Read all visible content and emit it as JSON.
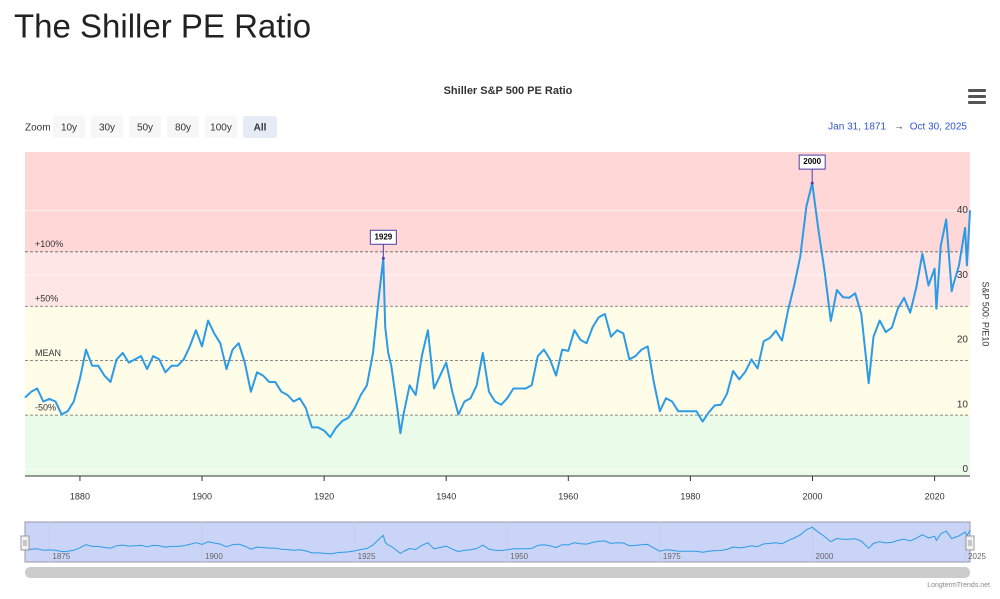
{
  "header": {
    "title": "The Shiller PE Ratio"
  },
  "chart_data": {
    "type": "line",
    "title": "Shiller S&P 500 PE Ratio",
    "y_axis_label": "S&P 500: P/E10",
    "credit": "LongtermTrends.net",
    "zoom": {
      "label": "Zoom",
      "buttons": [
        "10y",
        "30y",
        "50y",
        "80y",
        "100y",
        "All"
      ],
      "active": 5
    },
    "range": {
      "from": "Jan 31, 1871",
      "separator": "→",
      "to": "Oct 30, 2025"
    },
    "xlim": [
      1871,
      2025.8
    ],
    "ylim": [
      -1,
      49
    ],
    "xticks": [
      1880,
      1900,
      1920,
      1940,
      1960,
      1980,
      2000,
      2020
    ],
    "yticks": [
      0,
      10,
      20,
      30,
      40
    ],
    "grid": true,
    "bands": [
      {
        "label": "+100%",
        "value": 33.6,
        "color": "#ffd7d7"
      },
      {
        "label": "+50%",
        "value": 25.2,
        "color": "#ffe6e6"
      },
      {
        "label": "MEAN",
        "value": 16.8,
        "color": "#fffde8"
      },
      {
        "label": "-50%",
        "value": 8.4,
        "color": "#fffde8"
      }
    ],
    "below_color": "#eafbe9",
    "annotations": [
      {
        "x": 1929.7,
        "y": 32.6,
        "label": "1929"
      },
      {
        "x": 1999.95,
        "y": 44.2,
        "label": "2000"
      }
    ],
    "navigator": {
      "xticks": [
        1875,
        1900,
        1925,
        1950,
        1975,
        2000,
        2025
      ]
    },
    "series": [
      {
        "name": "Shiller PE",
        "color": "#2c9be6",
        "x": [
          1871,
          1872,
          1873,
          1874,
          1875,
          1876,
          1877,
          1878,
          1879,
          1880,
          1881,
          1882,
          1883,
          1884,
          1885,
          1886,
          1887,
          1888,
          1889,
          1890,
          1891,
          1892,
          1893,
          1894,
          1895,
          1896,
          1897,
          1898,
          1899,
          1900,
          1901,
          1902,
          1903,
          1904,
          1905,
          1906,
          1907,
          1908,
          1909,
          1910,
          1911,
          1912,
          1913,
          1914,
          1915,
          1916,
          1917,
          1918,
          1919,
          1920,
          1921,
          1922,
          1923,
          1924,
          1925,
          1926,
          1927,
          1928,
          1929,
          1929.7,
          1930,
          1930.5,
          1931,
          1932,
          1932.5,
          1933,
          1934,
          1935,
          1936,
          1937,
          1938,
          1939,
          1940,
          1941,
          1942,
          1943,
          1944,
          1945,
          1946,
          1947,
          1948,
          1949,
          1950,
          1951,
          1952,
          1953,
          1954,
          1955,
          1956,
          1957,
          1958,
          1959,
          1960,
          1961,
          1962,
          1963,
          1964,
          1965,
          1966,
          1967,
          1968,
          1969,
          1970,
          1971,
          1972,
          1973,
          1974,
          1975,
          1976,
          1977,
          1978,
          1979,
          1980,
          1981,
          1982,
          1983,
          1984,
          1985,
          1986,
          1987,
          1988,
          1989,
          1990,
          1991,
          1992,
          1993,
          1994,
          1995,
          1996,
          1997,
          1998,
          1999,
          1999.95,
          2001,
          2002,
          2003,
          2004,
          2005,
          2006,
          2007,
          2008,
          2009,
          2009.2,
          2010,
          2011,
          2012,
          2013,
          2014,
          2015,
          2016,
          2017,
          2018,
          2019,
          2020,
          2020.3,
          2021,
          2021.9,
          2022.8,
          2023,
          2024,
          2025,
          2025.3,
          2025.8
        ],
        "values": [
          11.1,
          12.0,
          12.5,
          10.5,
          10.9,
          10.5,
          8.5,
          9.0,
          10.5,
          14.0,
          18.5,
          16.0,
          16.0,
          14.5,
          13.5,
          17.0,
          18.0,
          16.5,
          17.0,
          17.5,
          15.5,
          17.5,
          17.0,
          15.0,
          16.0,
          16.0,
          17.0,
          19.0,
          21.5,
          19.0,
          23.0,
          21.0,
          19.5,
          15.5,
          18.5,
          19.5,
          16.5,
          12.0,
          15.0,
          14.5,
          13.5,
          13.5,
          12.0,
          11.5,
          10.5,
          11.0,
          9.5,
          6.5,
          6.5,
          6.0,
          5.0,
          6.5,
          7.5,
          8.0,
          9.5,
          11.5,
          13.0,
          18.0,
          27.0,
          32.6,
          22.0,
          18.0,
          16.0,
          9.3,
          5.6,
          8.5,
          13.0,
          11.5,
          17.5,
          21.5,
          12.5,
          14.5,
          16.5,
          12.0,
          8.5,
          10.5,
          11.0,
          13.0,
          18.0,
          12.0,
          10.5,
          10.0,
          11.0,
          12.5,
          12.5,
          12.5,
          13.0,
          17.5,
          18.5,
          17.0,
          14.5,
          18.5,
          18.3,
          21.5,
          20.0,
          19.5,
          22.0,
          23.5,
          24.0,
          20.5,
          21.5,
          21.0,
          17.0,
          17.5,
          18.5,
          19.0,
          13.5,
          9.0,
          11.0,
          10.5,
          9.0,
          9.0,
          9.0,
          9.0,
          7.4,
          8.8,
          9.9,
          10.0,
          11.7,
          15.2,
          13.9,
          15.1,
          17.0,
          15.6,
          19.8,
          20.3,
          21.4,
          19.9,
          24.6,
          28.4,
          32.9,
          40.6,
          44.2,
          36.8,
          30.5,
          22.9,
          27.7,
          26.6,
          26.5,
          27.2,
          24.0,
          15.2,
          13.3,
          20.5,
          23.0,
          21.2,
          21.9,
          24.9,
          26.5,
          24.2,
          28.1,
          33.3,
          28.4,
          31.0,
          24.8,
          34.5,
          38.6,
          27.5,
          28.3,
          31.5,
          37.3,
          31.5,
          40.0
        ]
      }
    ]
  }
}
